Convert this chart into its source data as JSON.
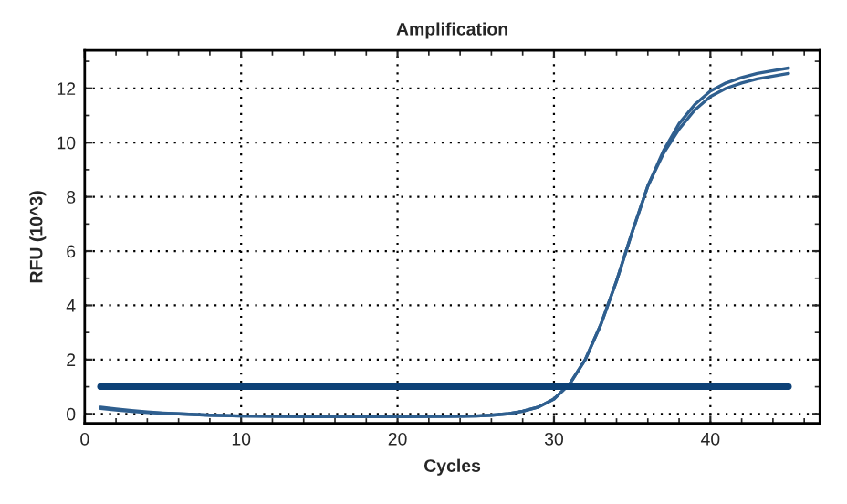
{
  "chart_data": {
    "type": "line",
    "title": "Amplification",
    "xlabel": "Cycles",
    "ylabel": "RFU (10^3)",
    "xlim": [
      0,
      47
    ],
    "xticks": [
      0,
      10,
      20,
      30,
      40
    ],
    "ylim": [
      -0.35,
      13.4
    ],
    "yticks": [
      0,
      2,
      4,
      6,
      8,
      10,
      12
    ],
    "grid": true,
    "line_style": "solid",
    "marker": "none",
    "series": [
      {
        "color": "#2f5f8f",
        "x": [
          1,
          2,
          3,
          4,
          5,
          6,
          8,
          10,
          15,
          20,
          25,
          26,
          27,
          28,
          29,
          30,
          31,
          32,
          33,
          34,
          35,
          36,
          37,
          38,
          39,
          40,
          41,
          42,
          43,
          44,
          45
        ],
        "values": [
          0.25,
          0.18,
          0.12,
          0.07,
          0.03,
          0.0,
          -0.05,
          -0.08,
          -0.1,
          -0.1,
          -0.08,
          -0.05,
          0.0,
          0.1,
          0.25,
          0.55,
          1.1,
          2.0,
          3.3,
          4.9,
          6.7,
          8.4,
          9.7,
          10.7,
          11.4,
          11.9,
          12.2,
          12.4,
          12.55,
          12.65,
          12.75
        ]
      },
      {
        "color": "#2f5f8f",
        "x": [
          1,
          2,
          3,
          4,
          5,
          6,
          8,
          10,
          15,
          20,
          25,
          26,
          27,
          28,
          29,
          30,
          31,
          32,
          33,
          34,
          35,
          36,
          37,
          38,
          39,
          40,
          41,
          42,
          43,
          44,
          45
        ],
        "values": [
          0.2,
          0.14,
          0.09,
          0.05,
          0.02,
          0.0,
          -0.05,
          -0.08,
          -0.1,
          -0.1,
          -0.08,
          -0.05,
          0.0,
          0.1,
          0.25,
          0.55,
          1.1,
          2.0,
          3.3,
          4.9,
          6.7,
          8.4,
          9.6,
          10.5,
          11.2,
          11.7,
          12.0,
          12.2,
          12.35,
          12.45,
          12.55
        ]
      },
      {
        "type": "line",
        "color": "#0d4177",
        "x": [
          1,
          45
        ],
        "values": [
          1.0,
          1.0
        ]
      }
    ]
  }
}
